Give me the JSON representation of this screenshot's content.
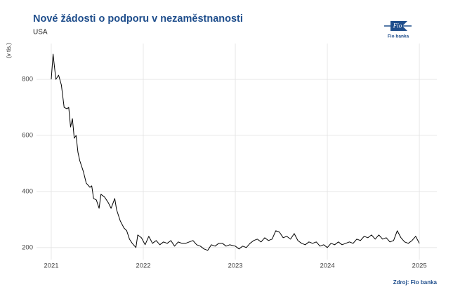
{
  "chart_data": {
    "type": "line",
    "title": "Nové žádosti o podporu v nezaměstnanosti",
    "subtitle": "USA",
    "y_label": "(v tis.)",
    "source": "Zdroj: Fio banka",
    "logo_text": "Fio",
    "logo_caption": "Fio banka",
    "color": "#000000",
    "grid": true,
    "xlim": [
      2020.84,
      2025.19
    ],
    "xticks": [
      2021,
      2022,
      2023,
      2024,
      2025
    ],
    "ylim": [
      157,
      928
    ],
    "yticks": [
      200,
      400,
      600,
      800
    ],
    "x": [
      2021.0,
      2021.02,
      2021.05,
      2021.08,
      2021.11,
      2021.14,
      2021.17,
      2021.19,
      2021.21,
      2021.23,
      2021.25,
      2021.27,
      2021.29,
      2021.31,
      2021.35,
      2021.38,
      2021.42,
      2021.44,
      2021.46,
      2021.49,
      2021.52,
      2021.54,
      2021.58,
      2021.62,
      2021.65,
      2021.69,
      2021.71,
      2021.75,
      2021.79,
      2021.82,
      2021.85,
      2021.88,
      2021.92,
      2021.94,
      2021.98,
      2022.02,
      2022.06,
      2022.1,
      2022.14,
      2022.18,
      2022.22,
      2022.26,
      2022.3,
      2022.34,
      2022.38,
      2022.42,
      2022.46,
      2022.5,
      2022.54,
      2022.58,
      2022.62,
      2022.66,
      2022.7,
      2022.74,
      2022.78,
      2022.82,
      2022.86,
      2022.9,
      2022.94,
      2023.0,
      2023.04,
      2023.08,
      2023.12,
      2023.16,
      2023.2,
      2023.24,
      2023.28,
      2023.32,
      2023.36,
      2023.4,
      2023.44,
      2023.48,
      2023.52,
      2023.56,
      2023.6,
      2023.64,
      2023.68,
      2023.72,
      2023.76,
      2023.8,
      2023.84,
      2023.88,
      2023.92,
      2023.96,
      2024.0,
      2024.04,
      2024.08,
      2024.12,
      2024.16,
      2024.2,
      2024.24,
      2024.28,
      2024.32,
      2024.36,
      2024.4,
      2024.44,
      2024.48,
      2024.52,
      2024.56,
      2024.6,
      2024.64,
      2024.68,
      2024.72,
      2024.76,
      2024.8,
      2024.84,
      2024.88,
      2024.92,
      2024.96,
      2025.0
    ],
    "values": [
      800,
      890,
      800,
      815,
      780,
      700,
      695,
      700,
      630,
      660,
      590,
      600,
      540,
      510,
      470,
      430,
      415,
      420,
      375,
      370,
      340,
      390,
      380,
      360,
      340,
      375,
      335,
      295,
      270,
      260,
      230,
      215,
      200,
      245,
      235,
      210,
      240,
      215,
      225,
      210,
      220,
      215,
      225,
      205,
      220,
      215,
      215,
      220,
      225,
      210,
      205,
      195,
      190,
      210,
      205,
      215,
      215,
      205,
      210,
      205,
      195,
      205,
      200,
      215,
      225,
      230,
      220,
      235,
      225,
      230,
      260,
      255,
      235,
      240,
      230,
      250,
      225,
      215,
      210,
      220,
      215,
      220,
      205,
      210,
      200,
      215,
      210,
      220,
      210,
      215,
      220,
      215,
      230,
      225,
      240,
      235,
      245,
      230,
      245,
      230,
      235,
      220,
      225,
      260,
      235,
      220,
      215,
      225,
      240,
      215
    ]
  }
}
